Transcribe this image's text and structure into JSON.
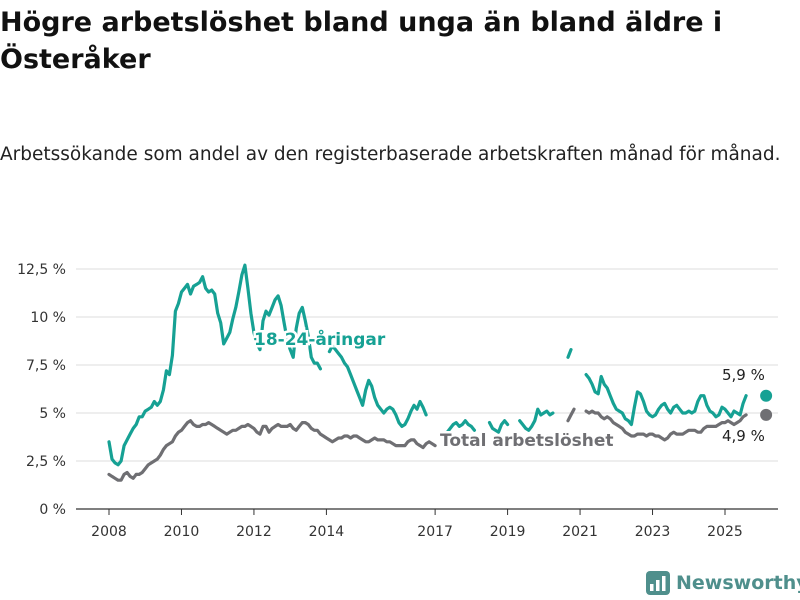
{
  "title": "Högre arbetslöshet bland unga än bland äldre i Österåker",
  "subtitle": "Arbetssökande som andel av den registerbaserade arbetskraften månad för månad.",
  "brand": {
    "name": "Newsworthy",
    "logo_icon": "bar-chart-icon"
  },
  "colors": {
    "young": "#16a194",
    "total": "#6f6f73",
    "grid": "#dcdcdc",
    "axis": "#333333",
    "logo": "#4f8f8c"
  },
  "chart_data": {
    "type": "line",
    "x_start": "2008-01",
    "x_step": "month",
    "ylim": [
      0,
      13
    ],
    "yticks": [
      0,
      2.5,
      5,
      7.5,
      10,
      12.5
    ],
    "ytick_labels": [
      "0 %",
      "2,5 %",
      "5 %",
      "7,5 %",
      "10 %",
      "12,5 %"
    ],
    "xtick_labels": [
      "2008",
      "2010",
      "2012",
      "2014",
      "2017",
      "2019",
      "2021",
      "2023",
      "2025"
    ],
    "xticks": [
      2008,
      2010,
      2012,
      2014,
      2017,
      2019,
      2021,
      2023,
      2025
    ],
    "x_end": 2025.583,
    "grid": "horizontal",
    "series": [
      {
        "name": "18-24-åringar",
        "key": "young",
        "end_label": "5,9 %",
        "gaps": [
          [
            2013.85,
            2014.05
          ],
          [
            2016.75,
            2017.25
          ],
          [
            2018.15,
            2018.45
          ],
          [
            2019.0,
            2019.3
          ],
          [
            2020.25,
            2020.6
          ],
          [
            2020.75,
            2021.1
          ]
        ],
        "values": [
          3.5,
          2.6,
          2.4,
          2.3,
          2.5,
          3.3,
          3.6,
          3.9,
          4.2,
          4.4,
          4.8,
          4.8,
          5.1,
          5.2,
          5.3,
          5.6,
          5.4,
          5.6,
          6.2,
          7.2,
          7.0,
          8.0,
          10.3,
          10.7,
          11.3,
          11.5,
          11.7,
          11.2,
          11.6,
          11.7,
          11.8,
          12.1,
          11.5,
          11.3,
          11.4,
          11.2,
          10.2,
          9.7,
          8.6,
          8.9,
          9.2,
          9.9,
          10.5,
          11.3,
          12.2,
          12.7,
          11.5,
          10.2,
          9.2,
          8.6,
          8.3,
          9.8,
          10.3,
          10.1,
          10.5,
          10.9,
          11.1,
          10.6,
          9.7,
          8.8,
          8.3,
          7.9,
          9.4,
          10.2,
          10.5,
          9.8,
          9.0,
          7.9,
          7.6,
          7.6,
          7.3,
          6.3,
          7.8,
          8.2,
          8.5,
          8.3,
          8.1,
          7.9,
          7.6,
          7.4,
          7.0,
          6.6,
          6.2,
          5.8,
          5.4,
          6.2,
          6.7,
          6.4,
          5.8,
          5.4,
          5.2,
          5.0,
          5.2,
          5.3,
          5.2,
          4.9,
          4.5,
          4.3,
          4.4,
          4.7,
          5.1,
          5.4,
          5.2,
          5.6,
          5.3,
          4.9,
          4.6,
          4.4,
          4.2,
          4.1,
          4.3,
          4.2,
          4.0,
          4.2,
          4.4,
          4.5,
          4.3,
          4.4,
          4.6,
          4.4,
          4.3,
          4.1,
          4.3,
          4.2,
          4.4,
          4.7,
          4.5,
          4.2,
          4.1,
          4.0,
          4.4,
          4.6,
          4.4,
          4.3,
          4.6,
          4.8,
          4.6,
          4.4,
          4.2,
          4.1,
          4.3,
          4.6,
          5.2,
          4.9,
          5.0,
          5.1,
          4.9,
          5.0,
          5.2,
          4.6,
          5.5,
          6.8,
          7.9,
          8.3,
          8.7,
          7.8,
          7.4,
          7.1,
          7.0,
          6.8,
          6.5,
          6.1,
          6.0,
          6.9,
          6.5,
          6.3,
          5.9,
          5.5,
          5.2,
          5.1,
          5.0,
          4.7,
          4.6,
          4.4,
          5.3,
          6.1,
          6.0,
          5.6,
          5.1,
          4.9,
          4.8,
          4.9,
          5.2,
          5.4,
          5.5,
          5.2,
          5.0,
          5.3,
          5.4,
          5.2,
          5.0,
          5.0,
          5.1,
          5.0,
          5.1,
          5.6,
          5.9,
          5.9,
          5.4,
          5.1,
          5.0,
          4.8,
          4.9,
          5.3,
          5.2,
          5.0,
          4.8,
          5.1,
          5.0,
          4.9,
          5.5,
          5.9
        ]
      },
      {
        "name": "Total arbetslöshet",
        "key": "total",
        "end_label": "4,9 %",
        "gaps": [
          [
            2017.05,
            2018.0
          ],
          [
            2018.2,
            2018.55
          ],
          [
            2019.05,
            2019.3
          ],
          [
            2020.2,
            2020.6
          ],
          [
            2020.85,
            2021.1
          ]
        ],
        "values": [
          1.8,
          1.7,
          1.6,
          1.5,
          1.5,
          1.8,
          1.9,
          1.7,
          1.6,
          1.8,
          1.8,
          1.9,
          2.1,
          2.3,
          2.4,
          2.5,
          2.6,
          2.8,
          3.1,
          3.3,
          3.4,
          3.5,
          3.8,
          4.0,
          4.1,
          4.3,
          4.5,
          4.6,
          4.4,
          4.3,
          4.3,
          4.4,
          4.4,
          4.5,
          4.4,
          4.3,
          4.2,
          4.1,
          4.0,
          3.9,
          4.0,
          4.1,
          4.1,
          4.2,
          4.3,
          4.3,
          4.4,
          4.3,
          4.2,
          4.0,
          3.9,
          4.3,
          4.3,
          4.0,
          4.2,
          4.3,
          4.4,
          4.3,
          4.3,
          4.3,
          4.4,
          4.2,
          4.1,
          4.3,
          4.5,
          4.5,
          4.4,
          4.2,
          4.1,
          4.1,
          3.9,
          3.8,
          3.7,
          3.6,
          3.5,
          3.6,
          3.7,
          3.7,
          3.8,
          3.8,
          3.7,
          3.8,
          3.8,
          3.7,
          3.6,
          3.5,
          3.5,
          3.6,
          3.7,
          3.6,
          3.6,
          3.6,
          3.5,
          3.5,
          3.4,
          3.3,
          3.3,
          3.3,
          3.3,
          3.5,
          3.6,
          3.6,
          3.4,
          3.3,
          3.2,
          3.4,
          3.5,
          3.4,
          3.3,
          3.2,
          3.4,
          3.5,
          3.5,
          3.4,
          3.4,
          3.5,
          3.5,
          3.5,
          3.4,
          3.4,
          3.5,
          3.5,
          3.4,
          3.5,
          3.5,
          3.5,
          3.5,
          3.4,
          3.4,
          3.5,
          3.5,
          3.5,
          3.6,
          3.6,
          3.6,
          3.6,
          3.5,
          3.5,
          3.6,
          3.6,
          3.6,
          3.7,
          3.7,
          3.7,
          3.7,
          3.8,
          3.8,
          3.8,
          3.8,
          3.9,
          4.0,
          4.2,
          4.6,
          4.9,
          5.2,
          5.2,
          5.2,
          5.1,
          5.1,
          5.0,
          5.1,
          5.0,
          5.0,
          4.8,
          4.7,
          4.8,
          4.7,
          4.5,
          4.4,
          4.3,
          4.2,
          4.0,
          3.9,
          3.8,
          3.8,
          3.9,
          3.9,
          3.9,
          3.8,
          3.9,
          3.9,
          3.8,
          3.8,
          3.7,
          3.6,
          3.7,
          3.9,
          4.0,
          3.9,
          3.9,
          3.9,
          4.0,
          4.1,
          4.1,
          4.1,
          4.0,
          4.0,
          4.2,
          4.3,
          4.3,
          4.3,
          4.3,
          4.4,
          4.5,
          4.5,
          4.6,
          4.5,
          4.4,
          4.5,
          4.6,
          4.8,
          4.9
        ]
      }
    ],
    "annotations": [
      {
        "text": "18-24-åringar",
        "series": "young"
      },
      {
        "text": "Total arbetslöshet",
        "series": "total"
      },
      {
        "text": "5,9 %",
        "series": "young"
      },
      {
        "text": "4,9 %",
        "series": "total"
      }
    ]
  }
}
